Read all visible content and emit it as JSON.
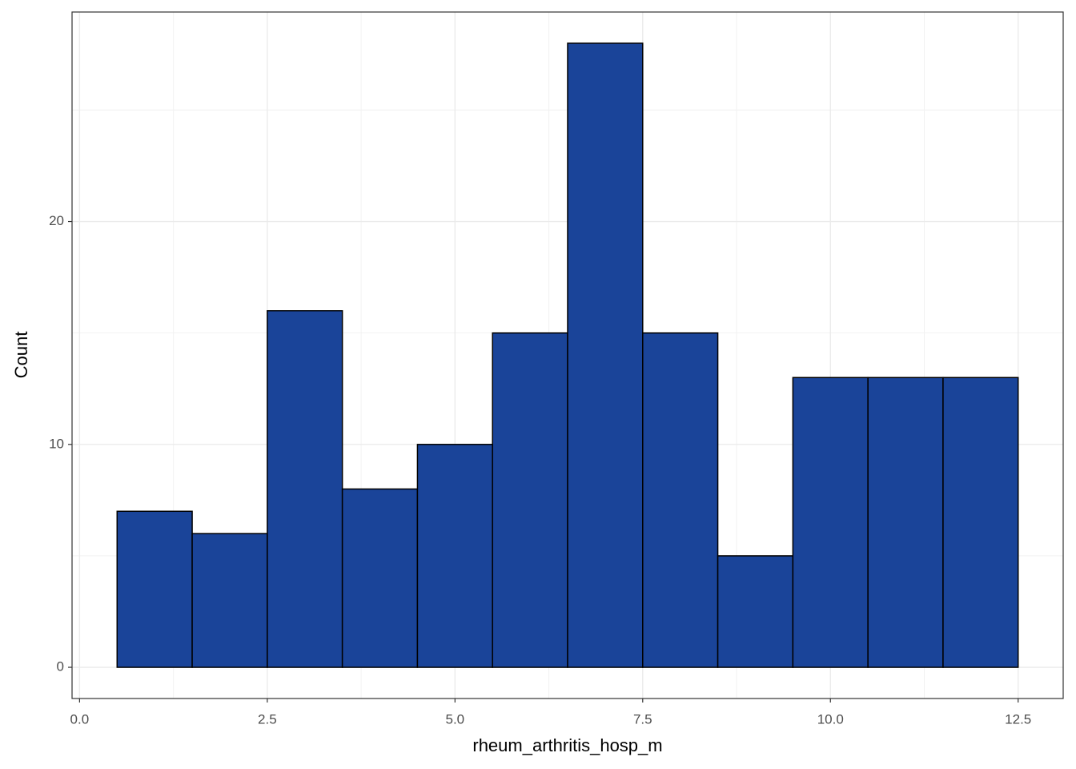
{
  "chart_data": {
    "type": "histogram",
    "xlabel": "rheum_arthritis_hosp_m",
    "ylabel": "Count",
    "bins": [
      0.5,
      1.5,
      2.5,
      3.5,
      4.5,
      5.5,
      6.5,
      7.5,
      8.5,
      9.5,
      10.5,
      11.5,
      12.5
    ],
    "values": [
      7,
      6,
      16,
      8,
      10,
      15,
      28,
      15,
      5,
      13,
      13,
      13
    ],
    "color": "#1a4499",
    "edgecolor": "#000000",
    "xlim": [
      -0.1,
      13.1
    ],
    "xticks": [
      {
        "value": 0,
        "label": "0.0"
      },
      2.5,
      {
        "value": 5,
        "label": "5.0"
      },
      7.5,
      {
        "value": 10,
        "label": "10.0"
      },
      12.5
    ],
    "ylim": [
      -1.4,
      29.4
    ],
    "yticks": [
      0,
      10,
      20
    ],
    "grid": true
  }
}
